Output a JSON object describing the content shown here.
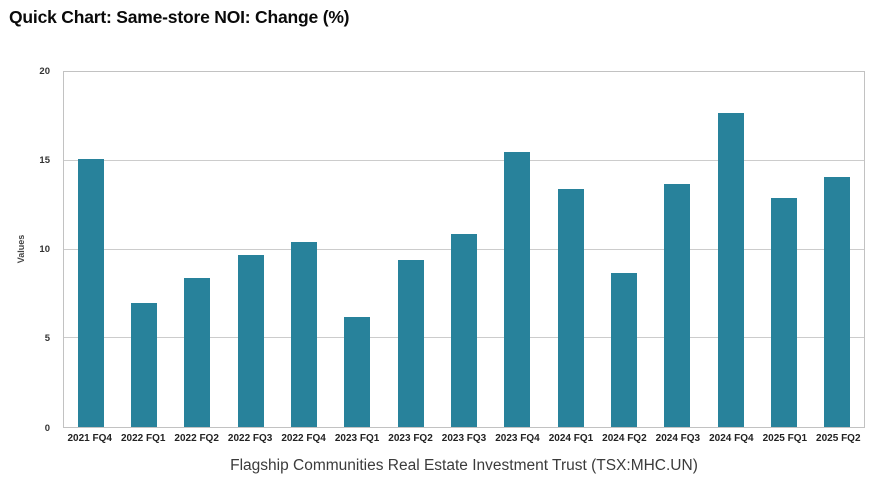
{
  "page": {
    "title": "Quick Chart: Same-store NOI: Change (%)"
  },
  "chart_data": {
    "type": "bar",
    "title": "Quick Chart: Same-store NOI: Change (%)",
    "categories": [
      "2021 FQ4",
      "2022 FQ1",
      "2022 FQ2",
      "2022 FQ3",
      "2022 FQ4",
      "2023 FQ1",
      "2023 FQ2",
      "2023 FQ3",
      "2023 FQ4",
      "2024 FQ1",
      "2024 FQ2",
      "2024 FQ3",
      "2024 FQ4",
      "2025 FQ1",
      "2025 FQ2"
    ],
    "values": [
      15.1,
      7.0,
      8.4,
      9.7,
      10.4,
      6.2,
      9.4,
      10.9,
      15.5,
      13.4,
      8.7,
      13.7,
      17.7,
      12.9,
      14.1
    ],
    "xlabel": "Flagship Communities Real Estate Investment Trust (TSX:MHC.UN)",
    "ylabel": "Values",
    "ylim": [
      0,
      20
    ],
    "yticks": [
      0,
      5,
      10,
      15,
      20
    ],
    "gridlines": [
      5,
      10,
      15
    ],
    "legend": "none",
    "grid": "horizontal"
  },
  "colors": {
    "bar": "#28829b",
    "grid": "#cccccc",
    "plot_border": "#c2c2c2",
    "title_text": "#0a0a0a",
    "axis_text": "#333333",
    "caption_text": "#3b3b3b"
  }
}
